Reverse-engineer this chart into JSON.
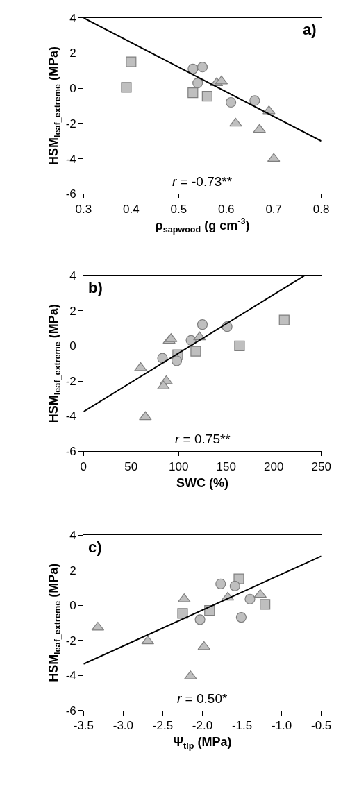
{
  "chart_data": [
    {
      "type": "scatter",
      "xlabel": "ρ$_{sapwood}$ (g cm$^{-3}$)",
      "ylabel": "HSM$_{leaf_extreme}$ (MPa)",
      "annotations": [
        "a)",
        "r = -0.73**"
      ],
      "xlim": [
        0.3,
        0.8
      ],
      "xticks": [
        0.3,
        0.4,
        0.5,
        0.6,
        0.7,
        0.8
      ],
      "ylim": [
        -6,
        4
      ],
      "yticks": [
        -6,
        -4,
        -2,
        0,
        2,
        4
      ],
      "series": [
        {
          "color": "#bfbfbf",
          "marker": "square",
          "x": [
            0.4,
            0.39,
            0.53,
            0.56
          ],
          "values": [
            1.5,
            0.05,
            -0.25,
            -0.45
          ]
        },
        {
          "color": "#bfbfbf",
          "marker": "circle",
          "x": [
            0.53,
            0.55,
            0.54,
            0.61,
            0.66
          ],
          "values": [
            1.1,
            1.2,
            0.3,
            -0.8,
            -0.7
          ]
        },
        {
          "color": "#bfbfbf",
          "marker": "triangle",
          "x": [
            0.58,
            0.59,
            0.62,
            0.67,
            0.69,
            0.7
          ],
          "values": [
            0.3,
            0.4,
            -2.0,
            -2.35,
            -1.3,
            -4.0
          ]
        },
        {
          "type": "line",
          "color": "#000000",
          "marker": "none",
          "x": [
            0.3,
            0.8
          ],
          "values": [
            4,
            -3
          ]
        }
      ]
    },
    {
      "type": "scatter",
      "xlabel": "SWC (%)",
      "ylabel": "HSM$_{leaf_extreme}$ (MPa)",
      "annotations": [
        "b)",
        "r = 0.75**"
      ],
      "xlim": [
        0,
        250
      ],
      "xticks": [
        0,
        50,
        100,
        150,
        200,
        250
      ],
      "ylim": [
        -6,
        4
      ],
      "yticks": [
        -6,
        -4,
        -2,
        0,
        2,
        4
      ],
      "series": [
        {
          "color": "#bfbfbf",
          "marker": "square",
          "x": [
            99,
            118,
            164,
            211
          ],
          "values": [
            -0.5,
            -0.3,
            0.0,
            1.48
          ]
        },
        {
          "color": "#bfbfbf",
          "marker": "circle",
          "x": [
            83,
            98,
            113,
            125,
            151
          ],
          "values": [
            -0.7,
            -0.85,
            0.32,
            1.22,
            1.1
          ]
        },
        {
          "color": "#bfbfbf",
          "marker": "triangle",
          "x": [
            60,
            90,
            92,
            87,
            84,
            65,
            122
          ],
          "values": [
            -1.25,
            0.3,
            0.4,
            -2.0,
            -2.3,
            -4.05,
            0.5
          ]
        },
        {
          "type": "line",
          "color": "#000000",
          "marker": "none",
          "x": [
            0,
            232
          ],
          "values": [
            -3.75,
            4
          ]
        }
      ]
    },
    {
      "type": "scatter",
      "xlabel": "Ψ$_{tlp}$ (MPa)",
      "ylabel": "HSM$_{leaf_extreme}$ (MPa)",
      "annotations": [
        "c)",
        "r = 0.50*"
      ],
      "xlim": [
        -3.5,
        -0.5
      ],
      "xticks": [
        -3.5,
        {
          "value": -3.0,
          "label": "-3.0"
        },
        -2.5,
        {
          "value": -2.0,
          "label": "-2.0"
        },
        -1.5,
        {
          "value": -1.0,
          "label": "-1.0"
        },
        -0.5
      ],
      "ylim": [
        -6,
        4
      ],
      "yticks": [
        -6,
        -4,
        -2,
        0,
        2,
        4
      ],
      "series": [
        {
          "color": "#bfbfbf",
          "marker": "square",
          "x": [
            -2.25,
            -1.91,
            -1.54,
            -1.21
          ],
          "values": [
            -0.47,
            -0.3,
            1.5,
            0.05
          ]
        },
        {
          "color": "#bfbfbf",
          "marker": "circle",
          "x": [
            -2.03,
            -1.77,
            -1.59,
            -1.4,
            -1.51
          ],
          "values": [
            -0.82,
            1.22,
            1.1,
            0.35,
            -0.69
          ]
        },
        {
          "color": "#bfbfbf",
          "marker": "triangle",
          "x": [
            -3.32,
            -2.69,
            -2.23,
            -1.98,
            -2.15,
            -1.68,
            -1.27
          ],
          "values": [
            -1.27,
            -2.05,
            0.35,
            -2.37,
            -4.05,
            0.44,
            0.6
          ]
        },
        {
          "type": "line",
          "color": "#000000",
          "marker": "none",
          "x": [
            -3.5,
            -0.5
          ],
          "values": [
            -3.35,
            2.8
          ]
        }
      ]
    }
  ]
}
